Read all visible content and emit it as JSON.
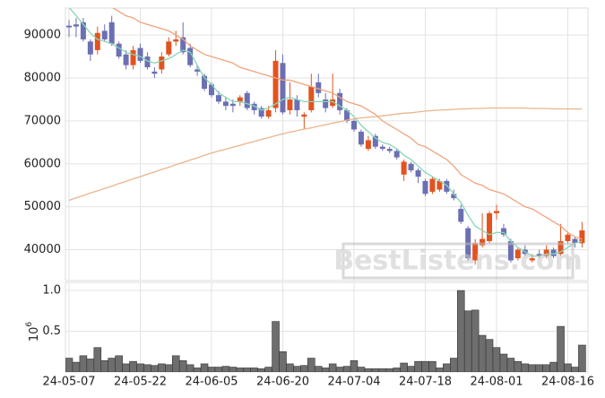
{
  "chart_data": [
    {
      "type": "candlestick",
      "open": [
        92200,
        92500,
        93000,
        88500,
        86500,
        91000,
        93000,
        88000,
        85500,
        83000,
        87000,
        85000,
        81500,
        82000,
        85500,
        88500,
        89500,
        87000,
        82000,
        80500,
        78500,
        76000,
        74500,
        74000,
        74500,
        76500,
        74000,
        73000,
        71000,
        73000,
        83500,
        72500,
        75000,
        71000,
        72500,
        79000,
        75000,
        73500,
        76500,
        72500,
        70000,
        67500,
        63500,
        66500,
        64000,
        63500,
        63000,
        57500,
        60000,
        58500,
        56000,
        53500,
        54000,
        56000,
        53000,
        49500,
        45000,
        37500,
        41000,
        42000,
        48500,
        45000,
        42000,
        38000,
        40000,
        37500,
        39000,
        38500,
        40000,
        39000,
        42000,
        42500,
        41500
      ],
      "high": [
        93500,
        94000,
        94000,
        89000,
        92000,
        92500,
        94500,
        88500,
        86500,
        87500,
        88000,
        86000,
        82500,
        86000,
        89500,
        91000,
        93000,
        88000,
        83000,
        81000,
        79000,
        77000,
        75500,
        75000,
        76000,
        77000,
        74500,
        73500,
        73500,
        86500,
        85500,
        79000,
        76000,
        72000,
        81000,
        81000,
        76500,
        81000,
        77500,
        73000,
        70500,
        68000,
        66500,
        67000,
        64500,
        64000,
        63500,
        61000,
        60500,
        59000,
        56500,
        57000,
        56500,
        56500,
        54000,
        50500,
        45500,
        42500,
        48500,
        49000,
        50500,
        46000,
        42500,
        40500,
        41000,
        39000,
        40000,
        41000,
        40500,
        46000,
        44000,
        43000,
        46500
      ],
      "low": [
        89500,
        89500,
        88500,
        84000,
        85500,
        88500,
        87500,
        84500,
        82000,
        82000,
        83500,
        82000,
        80000,
        81000,
        85000,
        87500,
        85500,
        82500,
        80500,
        77000,
        75500,
        74000,
        72500,
        72000,
        73500,
        72500,
        71500,
        70500,
        70500,
        72000,
        71500,
        71500,
        71000,
        68000,
        72000,
        75500,
        72000,
        73000,
        71500,
        69500,
        67500,
        64000,
        63000,
        63500,
        63000,
        62500,
        61000,
        56000,
        58000,
        55500,
        52500,
        53000,
        53500,
        53000,
        51500,
        46000,
        37500,
        36500,
        40500,
        41500,
        47000,
        43000,
        37000,
        37500,
        38500,
        37000,
        38000,
        38000,
        38000,
        38500,
        41500,
        40500,
        40500
      ],
      "close": [
        91800,
        92000,
        89000,
        85500,
        90500,
        89000,
        88000,
        85000,
        83000,
        86500,
        84000,
        82500,
        81000,
        85000,
        88500,
        89000,
        86000,
        83000,
        81500,
        77500,
        76000,
        74500,
        73500,
        73500,
        75500,
        73000,
        72500,
        71000,
        72500,
        84000,
        72000,
        75000,
        72500,
        71500,
        78000,
        76500,
        73000,
        75000,
        72500,
        70000,
        68000,
        64500,
        65500,
        64000,
        63500,
        63000,
        61500,
        60500,
        58500,
        57000,
        53000,
        56500,
        56000,
        53500,
        52000,
        46500,
        38000,
        41500,
        42500,
        48500,
        49000,
        43500,
        37500,
        40000,
        39000,
        38000,
        38500,
        40000,
        38500,
        42000,
        43500,
        41500,
        44500
      ],
      "up_color": "#e2531f",
      "down_color": "#6b6fb3",
      "series": [
        {
          "color": "#86d6b4",
          "values": [
            96500,
            94500,
            92500,
            90500,
            89000,
            88500,
            88000,
            87000,
            86000,
            85500,
            85000,
            84000,
            83500,
            84000,
            84500,
            85500,
            86500,
            86000,
            83000,
            80000,
            78500,
            76500,
            75500,
            74500,
            74500,
            74000,
            73500,
            72500,
            73000,
            74000,
            75000,
            75500,
            75000,
            74500,
            74500,
            74500,
            74500,
            74500,
            73500,
            72500,
            71000,
            69000,
            67500,
            66000,
            65000,
            64500,
            63500,
            62000,
            61000,
            59500,
            58000,
            57000,
            56000,
            55000,
            53000,
            51000,
            48000,
            45500,
            44500,
            43500,
            44000,
            44000,
            42000,
            40500,
            39500,
            38500,
            38500,
            39000,
            39000,
            39500,
            40500,
            41500,
            42000
          ]
        },
        {
          "color": "#efa37c",
          "values": [
            null,
            null,
            null,
            null,
            null,
            97500,
            96500,
            95500,
            94500,
            94000,
            93000,
            92500,
            92000,
            91500,
            91000,
            90000,
            89000,
            87500,
            86500,
            85500,
            85000,
            84500,
            84000,
            83500,
            82500,
            82000,
            81500,
            81000,
            80500,
            80000,
            79500,
            79500,
            79000,
            78500,
            78000,
            77500,
            77000,
            76500,
            75500,
            74500,
            74000,
            73500,
            72500,
            71500,
            70000,
            69000,
            68000,
            67000,
            66000,
            64500,
            64000,
            63000,
            62000,
            61000,
            59500,
            57500,
            56500,
            55500,
            55000,
            54000,
            53500,
            53000,
            52000,
            51000,
            50000,
            49500,
            48500,
            47500,
            46500,
            45500,
            44000,
            43000,
            42500
          ]
        },
        {
          "color": "#e9b58c",
          "values": [
            51500,
            52100,
            52600,
            53200,
            53700,
            54300,
            54800,
            55400,
            55900,
            56500,
            57000,
            57600,
            58100,
            58700,
            59200,
            59800,
            60300,
            60900,
            61400,
            62000,
            62500,
            63000,
            63400,
            63900,
            64300,
            64800,
            65200,
            65700,
            66100,
            66600,
            67000,
            67400,
            67700,
            68100,
            68400,
            68800,
            69100,
            69500,
            69800,
            70200,
            70500,
            70700,
            70900,
            71000,
            71200,
            71400,
            71600,
            71800,
            71900,
            72100,
            72300,
            72400,
            72500,
            72600,
            72700,
            72800,
            72800,
            72900,
            72900,
            73000,
            73000,
            73000,
            73000,
            73000,
            73000,
            72900,
            72900,
            72900,
            72800,
            72800,
            72800,
            72800,
            72800
          ]
        }
      ],
      "ylim": [
        32800,
        96300
      ],
      "yticks": [
        40000,
        50000,
        60000,
        70000,
        80000,
        90000
      ],
      "grid": true,
      "watermark": "BestListens.com"
    },
    {
      "type": "bar",
      "categories": [
        "24-05-07",
        null,
        null,
        null,
        null,
        null,
        null,
        null,
        null,
        null,
        "24-05-22",
        null,
        null,
        null,
        null,
        null,
        null,
        null,
        null,
        null,
        "24-06-05",
        null,
        null,
        null,
        null,
        null,
        null,
        null,
        null,
        null,
        "24-06-20",
        null,
        null,
        null,
        null,
        null,
        null,
        null,
        null,
        null,
        "24-07-04",
        null,
        null,
        null,
        null,
        null,
        null,
        null,
        null,
        null,
        "24-07-18",
        null,
        null,
        null,
        null,
        null,
        null,
        null,
        null,
        null,
        "24-08-01",
        null,
        null,
        null,
        null,
        null,
        null,
        null,
        null,
        null,
        "24-08-16",
        null,
        null
      ],
      "values": [
        0.17,
        0.12,
        0.2,
        0.16,
        0.3,
        0.14,
        0.17,
        0.2,
        0.1,
        0.13,
        0.1,
        0.09,
        0.08,
        0.1,
        0.09,
        0.2,
        0.14,
        0.09,
        0.05,
        0.1,
        0.06,
        0.06,
        0.07,
        0.06,
        0.05,
        0.05,
        0.05,
        0.04,
        0.06,
        0.62,
        0.25,
        0.1,
        0.07,
        0.08,
        0.17,
        0.07,
        0.05,
        0.1,
        0.06,
        0.07,
        0.14,
        0.06,
        0.04,
        0.04,
        0.04,
        0.04,
        0.05,
        0.11,
        0.07,
        0.13,
        0.13,
        0.13,
        0.05,
        0.1,
        0.17,
        1.0,
        0.75,
        0.76,
        0.45,
        0.4,
        0.3,
        0.22,
        0.17,
        0.13,
        0.1,
        0.09,
        0.09,
        0.09,
        0.12,
        0.56,
        0.1,
        0.06,
        0.33
      ],
      "color": "#6e6e6e",
      "ylim": [
        0,
        1.1
      ],
      "yticks": [
        0.5,
        {
          "value": 1,
          "label": "1.0"
        }
      ],
      "grid": true,
      "ylabel_base": "10",
      "ylabel_exponent": "6"
    }
  ]
}
